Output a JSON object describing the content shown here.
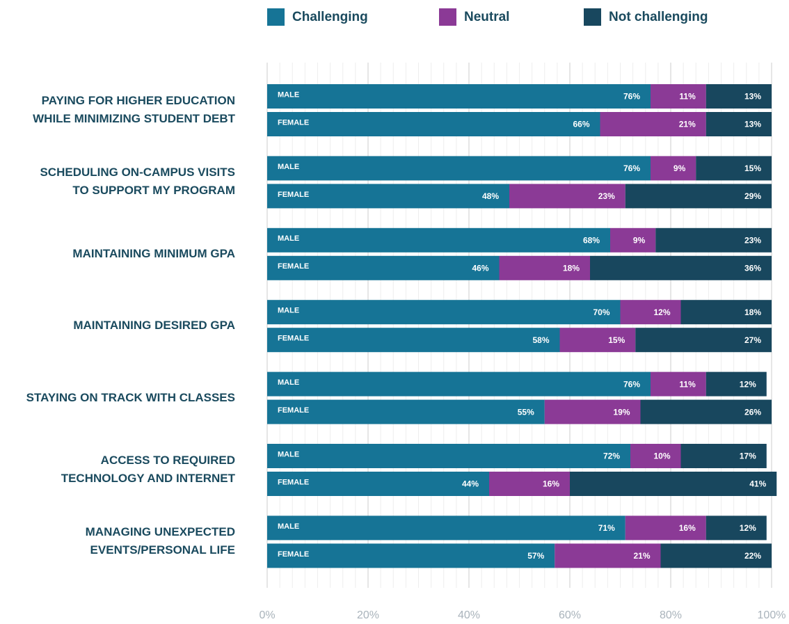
{
  "chart_data": {
    "type": "stacked-bar-horizontal",
    "categories": [
      "PAYING FOR HIGHER EDUCATION\nWHILE MINIMIZING STUDENT DEBT",
      "SCHEDULING ON-CAMPUS VISITS\nTO SUPPORT MY PROGRAM",
      "MAINTAINING MINIMUM GPA",
      "MAINTAINING DESIRED GPA",
      "STAYING ON TRACK WITH CLASSES",
      "ACCESS TO REQUIRED\nTECHNOLOGY AND INTERNET",
      "MANAGING UNEXPECTED\nEVENTS/PERSONAL LIFE"
    ],
    "subcategories": [
      "MALE",
      "FEMALE"
    ],
    "series": [
      {
        "name": "Challenging",
        "color": "#167496",
        "values": [
          [
            76,
            66
          ],
          [
            76,
            48
          ],
          [
            68,
            46
          ],
          [
            70,
            58
          ],
          [
            76,
            55
          ],
          [
            72,
            44
          ],
          [
            71,
            57
          ]
        ],
        "value_labels": [
          [
            "76%",
            "66%"
          ],
          [
            "76%",
            "48%"
          ],
          [
            "68%",
            "46%"
          ],
          [
            "70%",
            "58%"
          ],
          [
            "76%",
            "55%"
          ],
          [
            "72%",
            "44%"
          ],
          [
            "71%",
            "57%"
          ]
        ]
      },
      {
        "name": "Neutral",
        "color": "#8b3a96",
        "values": [
          [
            11,
            21
          ],
          [
            9,
            23
          ],
          [
            9,
            18
          ],
          [
            12,
            15
          ],
          [
            11,
            19
          ],
          [
            10,
            16
          ],
          [
            16,
            21
          ]
        ],
        "value_labels": [
          [
            "11%",
            "21%"
          ],
          [
            "9%",
            "23%"
          ],
          [
            "9%",
            "18%"
          ],
          [
            "12%",
            "15%"
          ],
          [
            "11%",
            "19%"
          ],
          [
            "10%",
            "16%"
          ],
          [
            "16%",
            "21%"
          ]
        ]
      },
      {
        "name": "Not challenging",
        "color": "#18475e",
        "values": [
          [
            13,
            13
          ],
          [
            15,
            29
          ],
          [
            23,
            36
          ],
          [
            18,
            27
          ],
          [
            12,
            26
          ],
          [
            17,
            41
          ],
          [
            12,
            22
          ]
        ],
        "value_labels": [
          [
            "13%",
            "13%"
          ],
          [
            "15%",
            "29%"
          ],
          [
            "23%",
            "36%"
          ],
          [
            "18%",
            "27%"
          ],
          [
            "12%",
            "26%"
          ],
          [
            "17%",
            "41%"
          ],
          [
            "12%",
            "22%"
          ]
        ]
      }
    ],
    "xlim": [
      0,
      100
    ],
    "xticks": [
      {
        "value": 0,
        "label": "0%"
      },
      {
        "value": 20,
        "label": "20%"
      },
      {
        "value": 40,
        "label": "40%"
      },
      {
        "value": 60,
        "label": "60%"
      },
      {
        "value": 80,
        "label": "80%"
      },
      {
        "value": 100,
        "label": "100%"
      }
    ],
    "xminor_step": 2.5,
    "grid": true,
    "legend": "top"
  }
}
